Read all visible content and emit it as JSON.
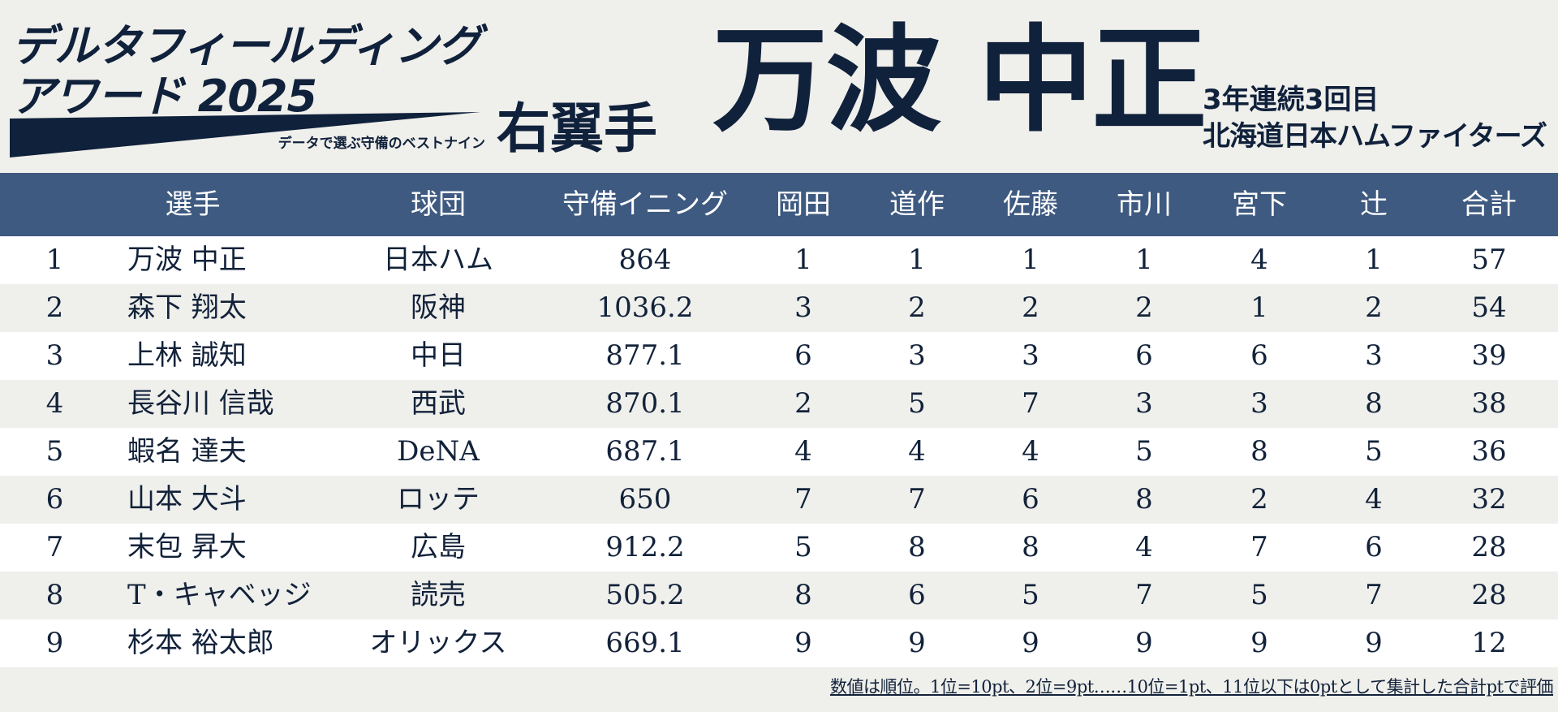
{
  "logo": {
    "line1": "デルタフィールディング",
    "line2": "アワード 2025",
    "subtitle": "データで選ぶ守備のベストナイン"
  },
  "position": "右翼手",
  "winner": {
    "name": "万波 中正",
    "streak": "3年連続3回目",
    "team": "北海道日本ハムファイターズ"
  },
  "colors": {
    "navy": "#10213b",
    "header_bar": "#3e5a80",
    "row_alt": "#efefeb",
    "row_white": "#ffffff"
  },
  "table": {
    "headers": {
      "player": "選手",
      "team": "球団",
      "innings": "守備イニング",
      "judge1": "岡田",
      "judge2": "道作",
      "judge3": "佐藤",
      "judge4": "市川",
      "judge5": "宮下",
      "judge6": "辻",
      "total": "合計"
    },
    "rows": [
      {
        "rank": "1",
        "name": "万波 中正",
        "team": "日本ハム",
        "innings": "864",
        "j1": "1",
        "j2": "1",
        "j3": "1",
        "j4": "1",
        "j5": "4",
        "j6": "1",
        "total": "57"
      },
      {
        "rank": "2",
        "name": "森下 翔太",
        "team": "阪神",
        "innings": "1036.2",
        "j1": "3",
        "j2": "2",
        "j3": "2",
        "j4": "2",
        "j5": "1",
        "j6": "2",
        "total": "54"
      },
      {
        "rank": "3",
        "name": "上林 誠知",
        "team": "中日",
        "innings": "877.1",
        "j1": "6",
        "j2": "3",
        "j3": "3",
        "j4": "6",
        "j5": "6",
        "j6": "3",
        "total": "39"
      },
      {
        "rank": "4",
        "name": "長谷川 信哉",
        "team": "西武",
        "innings": "870.1",
        "j1": "2",
        "j2": "5",
        "j3": "7",
        "j4": "3",
        "j5": "3",
        "j6": "8",
        "total": "38"
      },
      {
        "rank": "5",
        "name": "蝦名 達夫",
        "team": "DeNA",
        "innings": "687.1",
        "j1": "4",
        "j2": "4",
        "j3": "4",
        "j4": "5",
        "j5": "8",
        "j6": "5",
        "total": "36"
      },
      {
        "rank": "6",
        "name": "山本 大斗",
        "team": "ロッテ",
        "innings": "650",
        "j1": "7",
        "j2": "7",
        "j3": "6",
        "j4": "8",
        "j5": "2",
        "j6": "4",
        "total": "32"
      },
      {
        "rank": "7",
        "name": "末包 昇大",
        "team": "広島",
        "innings": "912.2",
        "j1": "5",
        "j2": "8",
        "j3": "8",
        "j4": "4",
        "j5": "7",
        "j6": "6",
        "total": "28"
      },
      {
        "rank": "8",
        "name": "T・キャベッジ",
        "team": "読売",
        "innings": "505.2",
        "j1": "8",
        "j2": "6",
        "j3": "5",
        "j4": "7",
        "j5": "5",
        "j6": "7",
        "total": "28"
      },
      {
        "rank": "9",
        "name": "杉本 裕太郎",
        "team": "オリックス",
        "innings": "669.1",
        "j1": "9",
        "j2": "9",
        "j3": "9",
        "j4": "9",
        "j5": "9",
        "j6": "9",
        "total": "12"
      }
    ]
  },
  "footnote": "数値は順位。1位=10pt、2位=9pt……10位=1pt、11位以下は0ptとして集計した合計ptで評価"
}
